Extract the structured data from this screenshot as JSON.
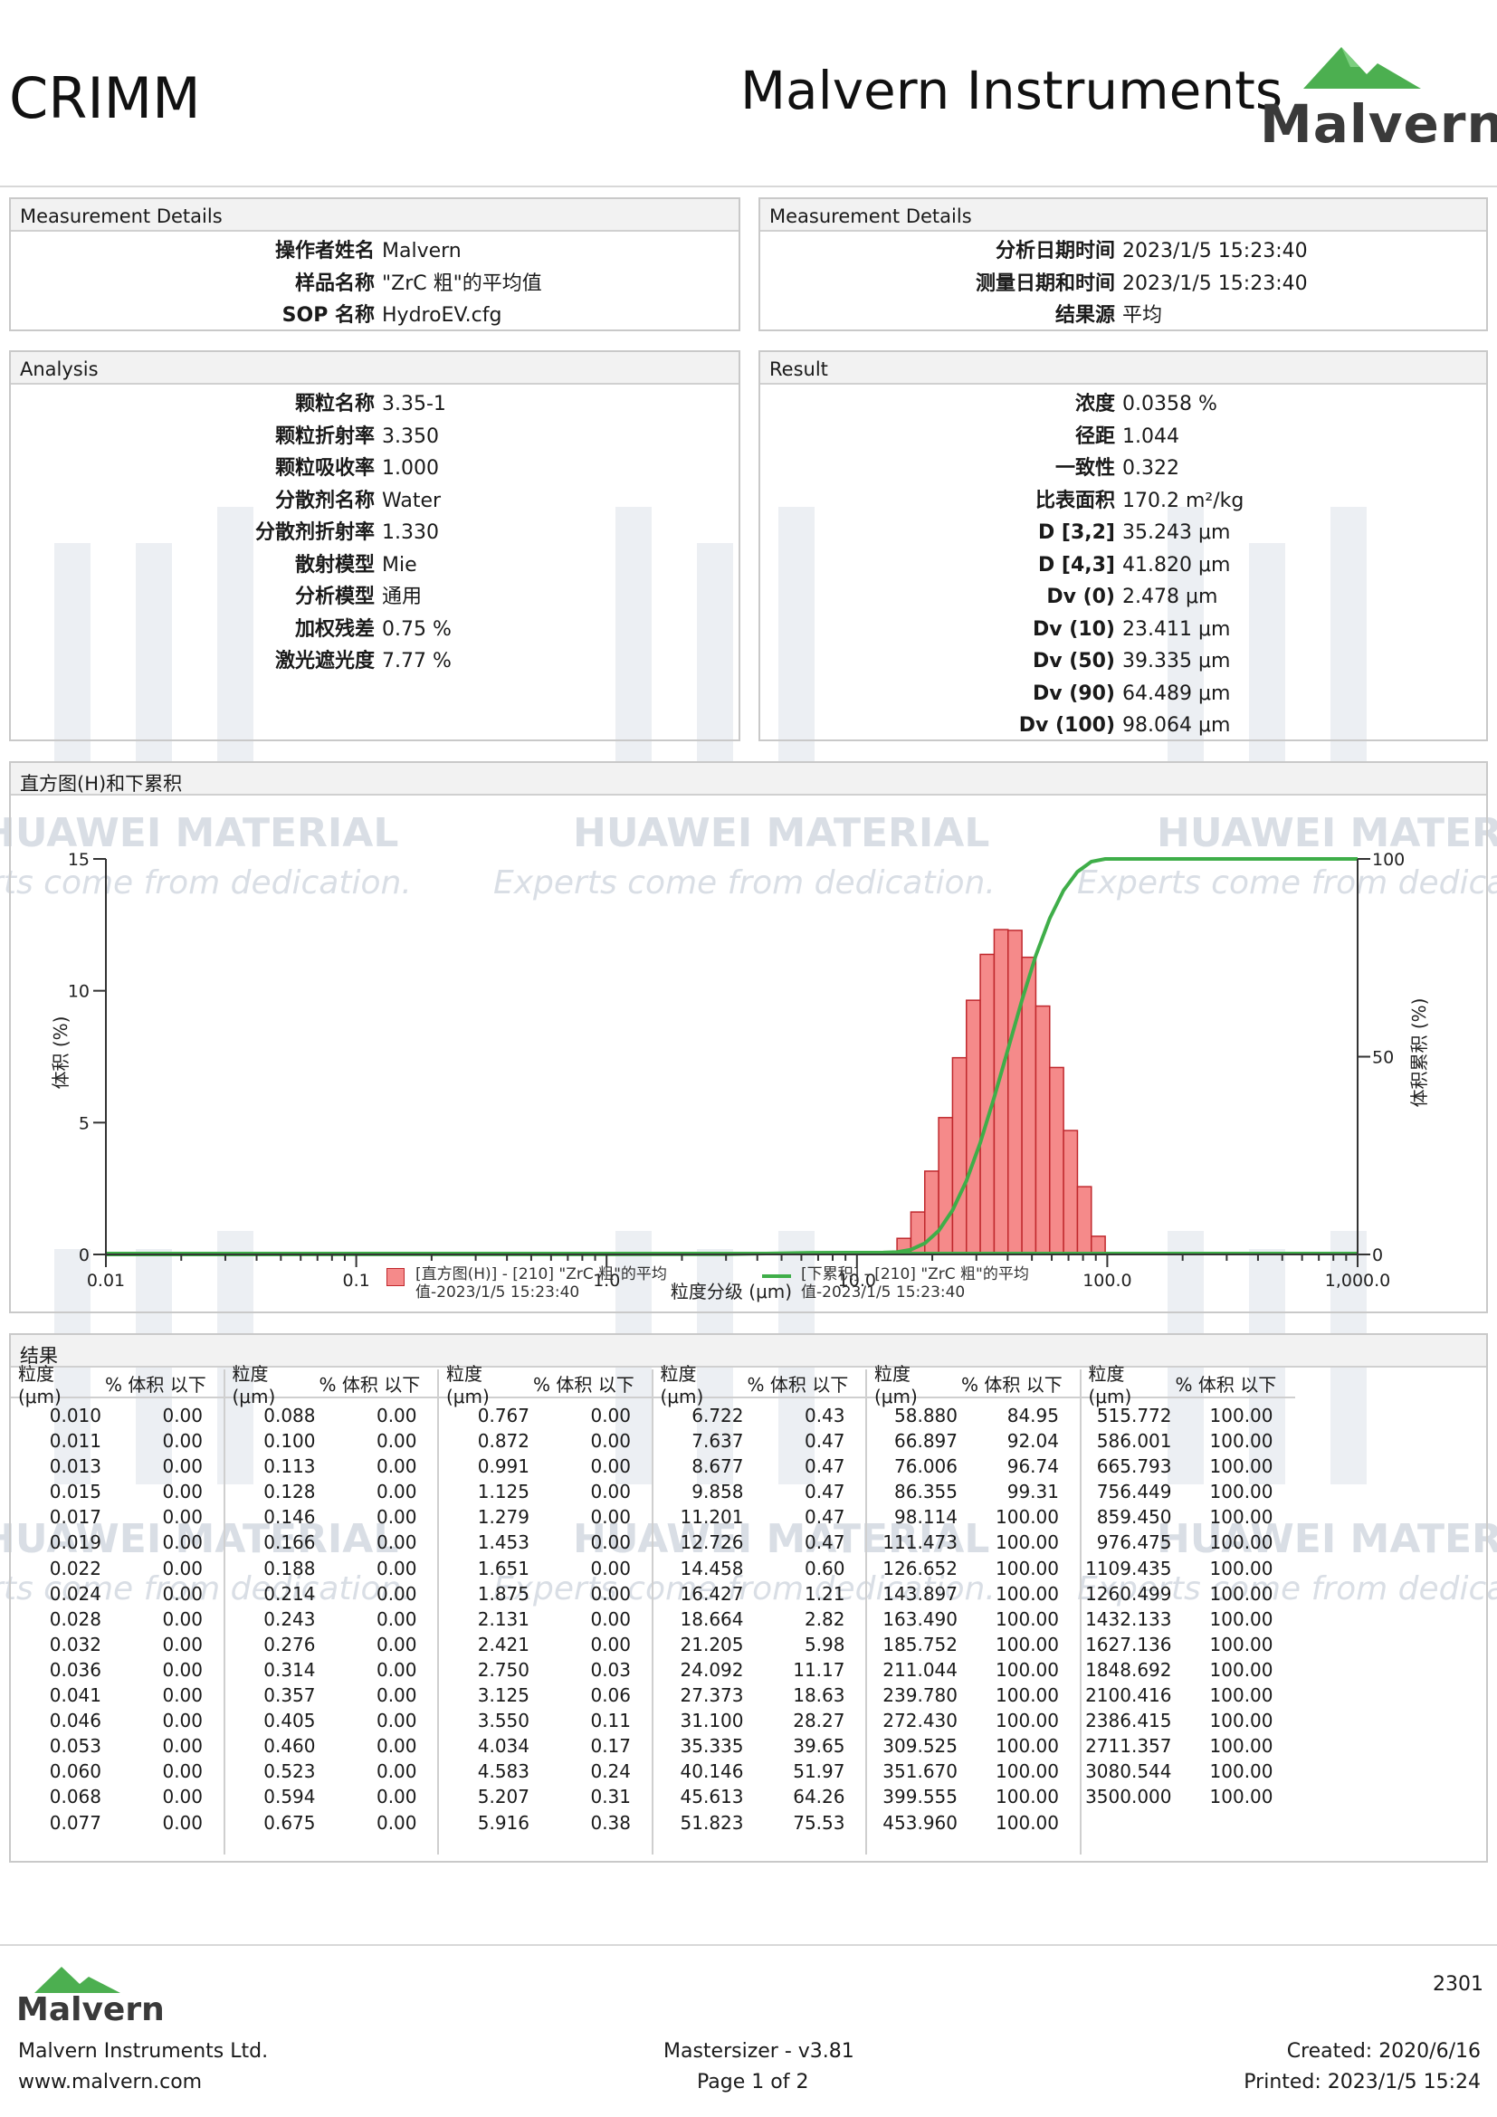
{
  "header": {
    "company": "CRIMM",
    "title": "Malvern Instruments",
    "logo_text": "Malvern"
  },
  "watermark": {
    "title": "HUAWEI MATERIAL",
    "subtitle": "Experts come from dedication."
  },
  "measurement_left": {
    "heading": "Measurement Details",
    "rows": [
      {
        "label": "操作者姓名",
        "value": "Malvern"
      },
      {
        "label": "样品名称",
        "value": "\"ZrC 粗\"的平均值"
      },
      {
        "label": "SOP 名称",
        "value": "HydroEV.cfg"
      }
    ]
  },
  "measurement_right": {
    "heading": "Measurement Details",
    "rows": [
      {
        "label": "分析日期时间",
        "value": "2023/1/5 15:23:40"
      },
      {
        "label": "测量日期和时间",
        "value": "2023/1/5 15:23:40"
      },
      {
        "label": "结果源",
        "value": "平均"
      }
    ]
  },
  "analysis": {
    "heading": "Analysis",
    "rows": [
      {
        "label": "颗粒名称",
        "value": "3.35-1"
      },
      {
        "label": "颗粒折射率",
        "value": "3.350"
      },
      {
        "label": "颗粒吸收率",
        "value": "1.000"
      },
      {
        "label": "分散剂名称",
        "value": "Water"
      },
      {
        "label": "分散剂折射率",
        "value": "1.330"
      },
      {
        "label": "散射模型",
        "value": "Mie"
      },
      {
        "label": "分析模型",
        "value": "通用"
      },
      {
        "label": "加权残差",
        "value": "0.75 %"
      },
      {
        "label": "激光遮光度",
        "value": "7.77 %"
      }
    ]
  },
  "result": {
    "heading": "Result",
    "rows": [
      {
        "label": "浓度",
        "value": "0.0358 %"
      },
      {
        "label": "径距",
        "value": "1.044"
      },
      {
        "label": "一致性",
        "value": "0.322"
      },
      {
        "label": "比表面积",
        "value": "170.2 m²/kg"
      },
      {
        "label": "D [3,2]",
        "value": "35.243 μm"
      },
      {
        "label": "D [4,3]",
        "value": "41.820 μm"
      },
      {
        "label": "Dv (0)",
        "value": "2.478 μm"
      },
      {
        "label": "Dv (10)",
        "value": "23.411 μm"
      },
      {
        "label": "Dv (50)",
        "value": "39.335 μm"
      },
      {
        "label": "Dv (90)",
        "value": "64.489 μm"
      },
      {
        "label": "Dv (100)",
        "value": "98.064 μm"
      }
    ]
  },
  "chart_panel": {
    "heading": "直方图(H)和下累积"
  },
  "chart_data": {
    "type": "bar",
    "xlabel": "粒度分级 (μm)",
    "ylabel": "体积 (%)",
    "y2label": "体积累积 (%)",
    "xscale": "log",
    "xlim": [
      0.01,
      1000
    ],
    "ylim": [
      0,
      15
    ],
    "y2lim": [
      0,
      100
    ],
    "x_ticks": [
      "0.01",
      "0.1",
      "1.0",
      "10.0",
      "100.0",
      "1,000.0"
    ],
    "y_ticks": [
      "0",
      "5",
      "10",
      "15"
    ],
    "y2_ticks": [
      "0",
      "50",
      "100"
    ],
    "grid": false,
    "colors": {
      "histogram": "#f58a8a",
      "histogram_edge": "#c0282d",
      "cumulative": "#3fae49"
    },
    "bins": [
      [
        14.458,
        16.427,
        0.61
      ],
      [
        16.427,
        18.664,
        1.61
      ],
      [
        18.664,
        21.205,
        3.16
      ],
      [
        21.205,
        24.092,
        5.19
      ],
      [
        24.092,
        27.373,
        7.46
      ],
      [
        27.373,
        31.1,
        9.64
      ],
      [
        31.1,
        35.335,
        11.38
      ],
      [
        35.335,
        40.146,
        12.32
      ],
      [
        40.146,
        45.613,
        12.29
      ],
      [
        45.613,
        51.823,
        11.27
      ],
      [
        51.823,
        58.88,
        9.42
      ],
      [
        58.88,
        66.897,
        7.09
      ],
      [
        66.897,
        76.006,
        4.7
      ],
      [
        76.006,
        86.355,
        2.57
      ],
      [
        86.355,
        98.114,
        0.69
      ]
    ],
    "series": [
      {
        "name": "[直方图(H)] - [210] \"ZrC 粗\"的平均值-2023/1/5 15:23:40",
        "type": "histogram"
      },
      {
        "name": "[下累积] - [210] \"ZrC 粗\"的平均值-2023/1/5 15:23:40",
        "type": "line",
        "x": [
          0.01,
          3.0,
          6.722,
          12.726,
          14.458,
          16.427,
          18.664,
          21.205,
          24.092,
          27.373,
          31.1,
          35.335,
          40.146,
          45.613,
          51.823,
          58.88,
          66.897,
          76.006,
          86.355,
          98.114,
          1000
        ],
        "y": [
          0.0,
          0.05,
          0.43,
          0.47,
          0.6,
          1.21,
          2.82,
          5.98,
          11.17,
          18.63,
          28.27,
          39.65,
          51.97,
          64.26,
          75.53,
          84.95,
          92.04,
          96.74,
          99.31,
          100.0,
          100.0
        ]
      }
    ],
    "legend_position": "bottom"
  },
  "results_table": {
    "heading": "结果",
    "col_size": "粒度 (μm)",
    "col_pct": "% 体积 以下",
    "columns": [
      [
        [
          "0.010",
          "0.00"
        ],
        [
          "0.011",
          "0.00"
        ],
        [
          "0.013",
          "0.00"
        ],
        [
          "0.015",
          "0.00"
        ],
        [
          "0.017",
          "0.00"
        ],
        [
          "0.019",
          "0.00"
        ],
        [
          "0.022",
          "0.00"
        ],
        [
          "0.024",
          "0.00"
        ],
        [
          "0.028",
          "0.00"
        ],
        [
          "0.032",
          "0.00"
        ],
        [
          "0.036",
          "0.00"
        ],
        [
          "0.041",
          "0.00"
        ],
        [
          "0.046",
          "0.00"
        ],
        [
          "0.053",
          "0.00"
        ],
        [
          "0.060",
          "0.00"
        ],
        [
          "0.068",
          "0.00"
        ],
        [
          "0.077",
          "0.00"
        ]
      ],
      [
        [
          "0.088",
          "0.00"
        ],
        [
          "0.100",
          "0.00"
        ],
        [
          "0.113",
          "0.00"
        ],
        [
          "0.128",
          "0.00"
        ],
        [
          "0.146",
          "0.00"
        ],
        [
          "0.166",
          "0.00"
        ],
        [
          "0.188",
          "0.00"
        ],
        [
          "0.214",
          "0.00"
        ],
        [
          "0.243",
          "0.00"
        ],
        [
          "0.276",
          "0.00"
        ],
        [
          "0.314",
          "0.00"
        ],
        [
          "0.357",
          "0.00"
        ],
        [
          "0.405",
          "0.00"
        ],
        [
          "0.460",
          "0.00"
        ],
        [
          "0.523",
          "0.00"
        ],
        [
          "0.594",
          "0.00"
        ],
        [
          "0.675",
          "0.00"
        ]
      ],
      [
        [
          "0.767",
          "0.00"
        ],
        [
          "0.872",
          "0.00"
        ],
        [
          "0.991",
          "0.00"
        ],
        [
          "1.125",
          "0.00"
        ],
        [
          "1.279",
          "0.00"
        ],
        [
          "1.453",
          "0.00"
        ],
        [
          "1.651",
          "0.00"
        ],
        [
          "1.875",
          "0.00"
        ],
        [
          "2.131",
          "0.00"
        ],
        [
          "2.421",
          "0.00"
        ],
        [
          "2.750",
          "0.03"
        ],
        [
          "3.125",
          "0.06"
        ],
        [
          "3.550",
          "0.11"
        ],
        [
          "4.034",
          "0.17"
        ],
        [
          "4.583",
          "0.24"
        ],
        [
          "5.207",
          "0.31"
        ],
        [
          "5.916",
          "0.38"
        ]
      ],
      [
        [
          "6.722",
          "0.43"
        ],
        [
          "7.637",
          "0.47"
        ],
        [
          "8.677",
          "0.47"
        ],
        [
          "9.858",
          "0.47"
        ],
        [
          "11.201",
          "0.47"
        ],
        [
          "12.726",
          "0.47"
        ],
        [
          "14.458",
          "0.60"
        ],
        [
          "16.427",
          "1.21"
        ],
        [
          "18.664",
          "2.82"
        ],
        [
          "21.205",
          "5.98"
        ],
        [
          "24.092",
          "11.17"
        ],
        [
          "27.373",
          "18.63"
        ],
        [
          "31.100",
          "28.27"
        ],
        [
          "35.335",
          "39.65"
        ],
        [
          "40.146",
          "51.97"
        ],
        [
          "45.613",
          "64.26"
        ],
        [
          "51.823",
          "75.53"
        ]
      ],
      [
        [
          "58.880",
          "84.95"
        ],
        [
          "66.897",
          "92.04"
        ],
        [
          "76.006",
          "96.74"
        ],
        [
          "86.355",
          "99.31"
        ],
        [
          "98.114",
          "100.00"
        ],
        [
          "111.473",
          "100.00"
        ],
        [
          "126.652",
          "100.00"
        ],
        [
          "143.897",
          "100.00"
        ],
        [
          "163.490",
          "100.00"
        ],
        [
          "185.752",
          "100.00"
        ],
        [
          "211.044",
          "100.00"
        ],
        [
          "239.780",
          "100.00"
        ],
        [
          "272.430",
          "100.00"
        ],
        [
          "309.525",
          "100.00"
        ],
        [
          "351.670",
          "100.00"
        ],
        [
          "399.555",
          "100.00"
        ],
        [
          "453.960",
          "100.00"
        ]
      ],
      [
        [
          "515.772",
          "100.00"
        ],
        [
          "586.001",
          "100.00"
        ],
        [
          "665.793",
          "100.00"
        ],
        [
          "756.449",
          "100.00"
        ],
        [
          "859.450",
          "100.00"
        ],
        [
          "976.475",
          "100.00"
        ],
        [
          "1109.435",
          "100.00"
        ],
        [
          "1260.499",
          "100.00"
        ],
        [
          "1432.133",
          "100.00"
        ],
        [
          "1627.136",
          "100.00"
        ],
        [
          "1848.692",
          "100.00"
        ],
        [
          "2100.416",
          "100.00"
        ],
        [
          "2386.415",
          "100.00"
        ],
        [
          "2711.357",
          "100.00"
        ],
        [
          "3080.544",
          "100.00"
        ],
        [
          "3500.000",
          "100.00"
        ]
      ]
    ]
  },
  "footer": {
    "logo_text": "Malvern",
    "company": "Malvern Instruments Ltd.",
    "website": "www.malvern.com",
    "software": "Mastersizer - v3.81",
    "page": "Page 1 of 2",
    "report_number": "2301",
    "created": "Created:  2020/6/16",
    "printed": "Printed: 2023/1/5 15:24"
  }
}
